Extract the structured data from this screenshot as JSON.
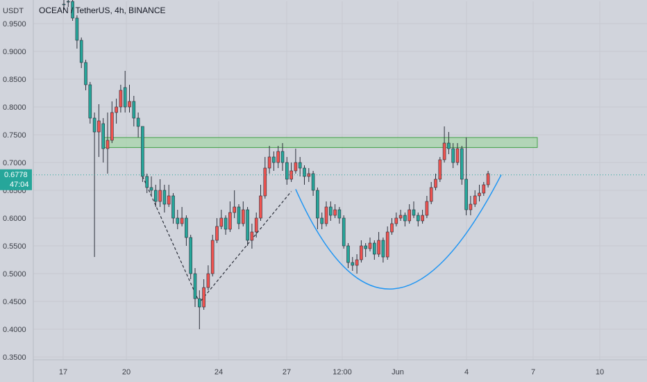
{
  "header": {
    "currency": "USDT",
    "title": "OCEAN / TetherUS, 4h, BINANCE"
  },
  "price_badge": {
    "price": "0.6778",
    "countdown": "47:04"
  },
  "colors": {
    "background": "#d1d4dc",
    "up": "#26a69a",
    "down": "#ef5350",
    "wick": "#2a2e39",
    "resistance_fill": "#a5d6a7",
    "resistance_stroke": "#43a047",
    "curve": "#2196f3",
    "price_line": "#26a69a",
    "badge": "#26a69a"
  },
  "chart_data": {
    "type": "candlestick",
    "title": "OCEAN / TetherUS, 4h, BINANCE",
    "y_ticks": [
      "0.9500",
      "0.9000",
      "0.8500",
      "0.8000",
      "0.7500",
      "0.7000",
      "0.6500",
      "0.6000",
      "0.5500",
      "0.5000",
      "0.4500",
      "0.4000",
      "0.3500"
    ],
    "x_ticks": [
      "17",
      "20",
      "24",
      "27",
      "12:00",
      "Jun",
      "4",
      "7",
      "10"
    ],
    "ylim": [
      0.345,
      0.99
    ],
    "current_price": 0.6778,
    "resistance_zone": [
      0.727,
      0.745
    ],
    "candles": [
      [
        0.985,
        0.995,
        0.975,
        0.985
      ],
      [
        0.99,
        0.995,
        0.98,
        0.99
      ],
      [
        0.96,
        0.995,
        0.955,
        0.99
      ],
      [
        0.92,
        0.965,
        0.905,
        0.96
      ],
      [
        0.88,
        0.925,
        0.87,
        0.92
      ],
      [
        0.84,
        0.885,
        0.83,
        0.88
      ],
      [
        0.78,
        0.845,
        0.77,
        0.84
      ],
      [
        0.755,
        0.79,
        0.53,
        0.78
      ],
      [
        0.775,
        0.805,
        0.71,
        0.755
      ],
      [
        0.725,
        0.78,
        0.7,
        0.77
      ],
      [
        0.74,
        0.79,
        0.68,
        0.725
      ],
      [
        0.79,
        0.81,
        0.735,
        0.74
      ],
      [
        0.8,
        0.815,
        0.77,
        0.79
      ],
      [
        0.83,
        0.84,
        0.79,
        0.8
      ],
      [
        0.8,
        0.865,
        0.79,
        0.835
      ],
      [
        0.81,
        0.84,
        0.79,
        0.8
      ],
      [
        0.78,
        0.82,
        0.765,
        0.81
      ],
      [
        0.765,
        0.79,
        0.745,
        0.78
      ],
      [
        0.675,
        0.765,
        0.665,
        0.765
      ],
      [
        0.655,
        0.68,
        0.645,
        0.675
      ],
      [
        0.65,
        0.675,
        0.64,
        0.655
      ],
      [
        0.63,
        0.66,
        0.62,
        0.65
      ],
      [
        0.65,
        0.67,
        0.62,
        0.63
      ],
      [
        0.625,
        0.66,
        0.61,
        0.65
      ],
      [
        0.64,
        0.66,
        0.62,
        0.625
      ],
      [
        0.6,
        0.645,
        0.59,
        0.64
      ],
      [
        0.59,
        0.615,
        0.58,
        0.6
      ],
      [
        0.6,
        0.62,
        0.585,
        0.59
      ],
      [
        0.565,
        0.605,
        0.55,
        0.6
      ],
      [
        0.5,
        0.57,
        0.49,
        0.565
      ],
      [
        0.455,
        0.51,
        0.44,
        0.5
      ],
      [
        0.44,
        0.47,
        0.4,
        0.455
      ],
      [
        0.475,
        0.49,
        0.435,
        0.44
      ],
      [
        0.5,
        0.515,
        0.47,
        0.475
      ],
      [
        0.56,
        0.57,
        0.495,
        0.5
      ],
      [
        0.585,
        0.6,
        0.555,
        0.56
      ],
      [
        0.6,
        0.615,
        0.58,
        0.585
      ],
      [
        0.58,
        0.605,
        0.57,
        0.6
      ],
      [
        0.61,
        0.63,
        0.575,
        0.58
      ],
      [
        0.62,
        0.65,
        0.6,
        0.61
      ],
      [
        0.59,
        0.625,
        0.58,
        0.62
      ],
      [
        0.615,
        0.63,
        0.585,
        0.59
      ],
      [
        0.56,
        0.62,
        0.55,
        0.615
      ],
      [
        0.575,
        0.59,
        0.545,
        0.56
      ],
      [
        0.6,
        0.61,
        0.565,
        0.575
      ],
      [
        0.64,
        0.66,
        0.595,
        0.6
      ],
      [
        0.69,
        0.71,
        0.635,
        0.64
      ],
      [
        0.71,
        0.73,
        0.68,
        0.69
      ],
      [
        0.7,
        0.72,
        0.685,
        0.71
      ],
      [
        0.72,
        0.73,
        0.69,
        0.7
      ],
      [
        0.7,
        0.735,
        0.685,
        0.72
      ],
      [
        0.67,
        0.71,
        0.66,
        0.7
      ],
      [
        0.685,
        0.7,
        0.665,
        0.67
      ],
      [
        0.7,
        0.725,
        0.68,
        0.685
      ],
      [
        0.69,
        0.71,
        0.675,
        0.7
      ],
      [
        0.675,
        0.695,
        0.66,
        0.69
      ],
      [
        0.68,
        0.69,
        0.665,
        0.675
      ],
      [
        0.65,
        0.685,
        0.64,
        0.68
      ],
      [
        0.6,
        0.655,
        0.58,
        0.65
      ],
      [
        0.59,
        0.61,
        0.58,
        0.6
      ],
      [
        0.62,
        0.63,
        0.585,
        0.59
      ],
      [
        0.605,
        0.63,
        0.595,
        0.62
      ],
      [
        0.615,
        0.625,
        0.6,
        0.605
      ],
      [
        0.6,
        0.62,
        0.59,
        0.615
      ],
      [
        0.55,
        0.605,
        0.545,
        0.6
      ],
      [
        0.52,
        0.555,
        0.51,
        0.55
      ],
      [
        0.515,
        0.53,
        0.505,
        0.52
      ],
      [
        0.525,
        0.535,
        0.5,
        0.515
      ],
      [
        0.55,
        0.56,
        0.52,
        0.525
      ],
      [
        0.545,
        0.555,
        0.53,
        0.55
      ],
      [
        0.555,
        0.565,
        0.54,
        0.545
      ],
      [
        0.535,
        0.56,
        0.525,
        0.555
      ],
      [
        0.56,
        0.575,
        0.53,
        0.535
      ],
      [
        0.53,
        0.565,
        0.52,
        0.56
      ],
      [
        0.575,
        0.585,
        0.525,
        0.53
      ],
      [
        0.59,
        0.6,
        0.57,
        0.575
      ],
      [
        0.6,
        0.61,
        0.585,
        0.59
      ],
      [
        0.605,
        0.615,
        0.595,
        0.6
      ],
      [
        0.595,
        0.61,
        0.585,
        0.605
      ],
      [
        0.615,
        0.625,
        0.59,
        0.595
      ],
      [
        0.605,
        0.63,
        0.6,
        0.615
      ],
      [
        0.595,
        0.61,
        0.585,
        0.605
      ],
      [
        0.605,
        0.615,
        0.59,
        0.595
      ],
      [
        0.63,
        0.64,
        0.6,
        0.605
      ],
      [
        0.655,
        0.665,
        0.625,
        0.63
      ],
      [
        0.67,
        0.68,
        0.65,
        0.655
      ],
      [
        0.705,
        0.71,
        0.665,
        0.67
      ],
      [
        0.735,
        0.765,
        0.7,
        0.705
      ],
      [
        0.725,
        0.755,
        0.715,
        0.735
      ],
      [
        0.7,
        0.735,
        0.69,
        0.725
      ],
      [
        0.725,
        0.735,
        0.695,
        0.7
      ],
      [
        0.67,
        0.73,
        0.66,
        0.725
      ],
      [
        0.615,
        0.745,
        0.605,
        0.67
      ],
      [
        0.625,
        0.64,
        0.605,
        0.615
      ],
      [
        0.64,
        0.65,
        0.62,
        0.625
      ],
      [
        0.645,
        0.66,
        0.63,
        0.64
      ],
      [
        0.66,
        0.665,
        0.64,
        0.645
      ],
      [
        0.68,
        0.685,
        0.655,
        0.66
      ]
    ]
  }
}
